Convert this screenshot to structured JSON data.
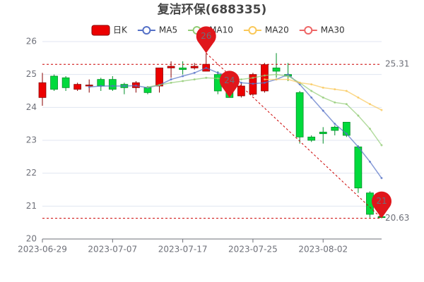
{
  "chart_data": {
    "type": "candlestick",
    "title": "复洁环保(688335)",
    "categories": [
      "2023-06-29",
      null,
      null,
      null,
      null,
      null,
      "2023-07-07",
      null,
      null,
      null,
      null,
      null,
      "2023-07-17",
      null,
      null,
      null,
      null,
      null,
      "2023-07-25",
      null,
      null,
      null,
      null,
      null,
      "2023-08-02",
      null,
      null,
      null,
      null,
      null
    ],
    "candles": {
      "name": "日K",
      "color_up": "#ec0000",
      "color_down": "#00da3c",
      "open": [
        24.3,
        24.95,
        24.9,
        24.55,
        24.65,
        24.85,
        24.85,
        24.7,
        24.6,
        24.6,
        24.65,
        25.2,
        25.2,
        25.2,
        25.1,
        25.0,
        24.7,
        24.35,
        24.4,
        24.5,
        25.2,
        25.0,
        24.45,
        23.1,
        23.25,
        23.4,
        23.55,
        22.8,
        21.4,
        20.68
      ],
      "close": [
        24.75,
        24.55,
        24.6,
        24.7,
        24.68,
        24.65,
        24.55,
        24.6,
        24.75,
        24.45,
        25.2,
        25.25,
        25.15,
        25.25,
        25.31,
        24.5,
        24.3,
        24.65,
        25.0,
        25.3,
        25.1,
        24.95,
        23.1,
        23.0,
        23.2,
        23.3,
        23.15,
        21.55,
        20.75,
        20.65
      ],
      "low": [
        24.05,
        24.5,
        24.5,
        24.5,
        24.45,
        24.5,
        24.5,
        24.4,
        24.45,
        24.4,
        24.45,
        24.9,
        25.0,
        25.15,
        25.1,
        24.4,
        24.3,
        24.3,
        24.35,
        24.45,
        24.9,
        24.8,
        22.9,
        22.95,
        22.9,
        23.15,
        23.1,
        21.4,
        20.65,
        20.63
      ],
      "high": [
        25.05,
        25.0,
        24.95,
        24.75,
        24.85,
        24.9,
        24.95,
        24.75,
        24.8,
        24.65,
        25.2,
        25.4,
        25.4,
        25.35,
        25.65,
        25.1,
        24.85,
        24.75,
        25.05,
        25.35,
        25.65,
        25.35,
        24.5,
        23.15,
        23.4,
        23.45,
        23.55,
        22.85,
        21.45,
        20.7
      ]
    },
    "series": [
      {
        "name": "MA5",
        "color": "#5470c6",
        "values": [
          null,
          null,
          null,
          null,
          24.62,
          24.65,
          24.65,
          24.65,
          24.66,
          24.6,
          24.68,
          24.85,
          24.95,
          25.05,
          25.2,
          25.05,
          24.95,
          24.75,
          24.72,
          24.75,
          24.85,
          25.0,
          24.7,
          24.3,
          23.9,
          23.5,
          23.2,
          22.8,
          22.35,
          21.85
        ]
      },
      {
        "name": "MA10",
        "color": "#91cc75",
        "values": [
          null,
          null,
          null,
          null,
          null,
          null,
          null,
          null,
          null,
          24.62,
          24.68,
          24.75,
          24.8,
          24.85,
          24.9,
          24.88,
          24.85,
          24.85,
          24.9,
          24.97,
          25.0,
          24.95,
          24.75,
          24.5,
          24.3,
          24.15,
          24.1,
          23.75,
          23.35,
          22.85
        ]
      },
      {
        "name": "MA20",
        "color": "#fac858",
        "values": [
          null,
          null,
          null,
          null,
          null,
          null,
          null,
          null,
          null,
          null,
          null,
          null,
          null,
          null,
          null,
          null,
          null,
          null,
          null,
          24.85,
          24.85,
          24.85,
          24.75,
          24.7,
          24.6,
          24.55,
          24.5,
          24.3,
          24.1,
          23.92
        ]
      },
      {
        "name": "MA30",
        "color": "#ee6666",
        "values": [
          null,
          null,
          null,
          null,
          null,
          null,
          null,
          null,
          null,
          null,
          null,
          null,
          null,
          null,
          null,
          null,
          null,
          null,
          null,
          null,
          null,
          null,
          null,
          null,
          null,
          null,
          null,
          null,
          null,
          null
        ]
      }
    ],
    "mark_lines": [
      25.31,
      20.63
    ],
    "mark_points": [
      {
        "x": 14,
        "value": 25.65,
        "label": "26"
      },
      {
        "x": 16,
        "value": 24.3,
        "label": "24"
      },
      {
        "x": 29,
        "value": 20.63,
        "label": "21"
      }
    ],
    "ylim": [
      20,
      26
    ],
    "yticks": [
      20,
      21,
      22,
      23,
      24,
      25,
      26
    ],
    "grid": true
  }
}
